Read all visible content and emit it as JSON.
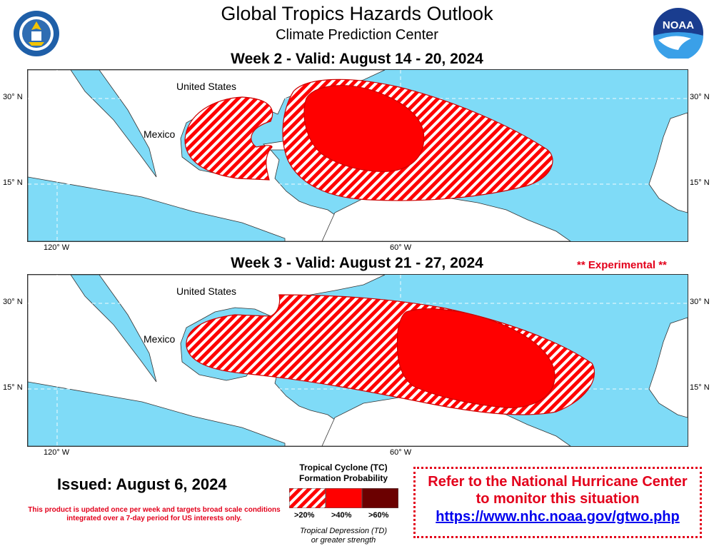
{
  "header": {
    "title": "Global Tropics Hazards Outlook",
    "subtitle": "Climate Prediction Center"
  },
  "logos": {
    "left": "department-of-commerce-seal",
    "right": "noaa-logo",
    "right_text": "NOAA"
  },
  "maps": [
    {
      "label": "Week 2 - Valid: August 14 - 20, 2024",
      "place_labels": [
        "United States",
        "Mexico"
      ],
      "lat_labels": [
        "30° N",
        "15° N"
      ],
      "lon_labels": [
        "120° W",
        "60° W"
      ],
      "hazards": [
        {
          "category": ">20%",
          "region": "Gulf of Mexico"
        },
        {
          "category": ">20%",
          "region": "Western and central Atlantic"
        },
        {
          "category": ">40%",
          "region": "Southwestern Atlantic north of the Greater Antilles"
        }
      ]
    },
    {
      "label": "Week 3 - Valid: August 21 - 27, 2024",
      "experimental": "** Experimental **",
      "place_labels": [
        "United States",
        "Mexico"
      ],
      "lat_labels": [
        "30° N",
        "15° N"
      ],
      "lon_labels": [
        "120° W",
        "60° W"
      ],
      "hazards": [
        {
          "category": ">20%",
          "region": "Gulf of Mexico, Caribbean and tropical Atlantic"
        },
        {
          "category": ">40%",
          "region": "Central tropical Atlantic"
        }
      ]
    }
  ],
  "issued": "Issued: August 6, 2024",
  "disclaimer": "This product is updated once per week and targets broad scale conditions integrated over a 7-day period for US interests only.",
  "legend": {
    "title_line1": "Tropical Cyclone (TC)",
    "title_line2": "Formation Probability",
    "items": [
      {
        "label": ">20%",
        "color": "#ff0000",
        "pattern": "hatched"
      },
      {
        "label": ">40%",
        "color": "#ff0000",
        "pattern": "solid"
      },
      {
        "label": ">60%",
        "color": "#6b0000",
        "pattern": "solid"
      }
    ],
    "note_line1": "Tropical Depression (TD)",
    "note_line2": "or greater strength"
  },
  "nhc_notice": {
    "line1": "Refer to the National Hurricane Center",
    "line2": "to monitor this situation",
    "link": "https://www.nhc.noaa.gov/gtwo.php"
  },
  "colors": {
    "ocean": "#7fdbf7",
    "land": "#ffffff",
    "hazard_red": "#ff0000",
    "hazard_dark": "#6b0000",
    "alert_red": "#e3001b"
  }
}
